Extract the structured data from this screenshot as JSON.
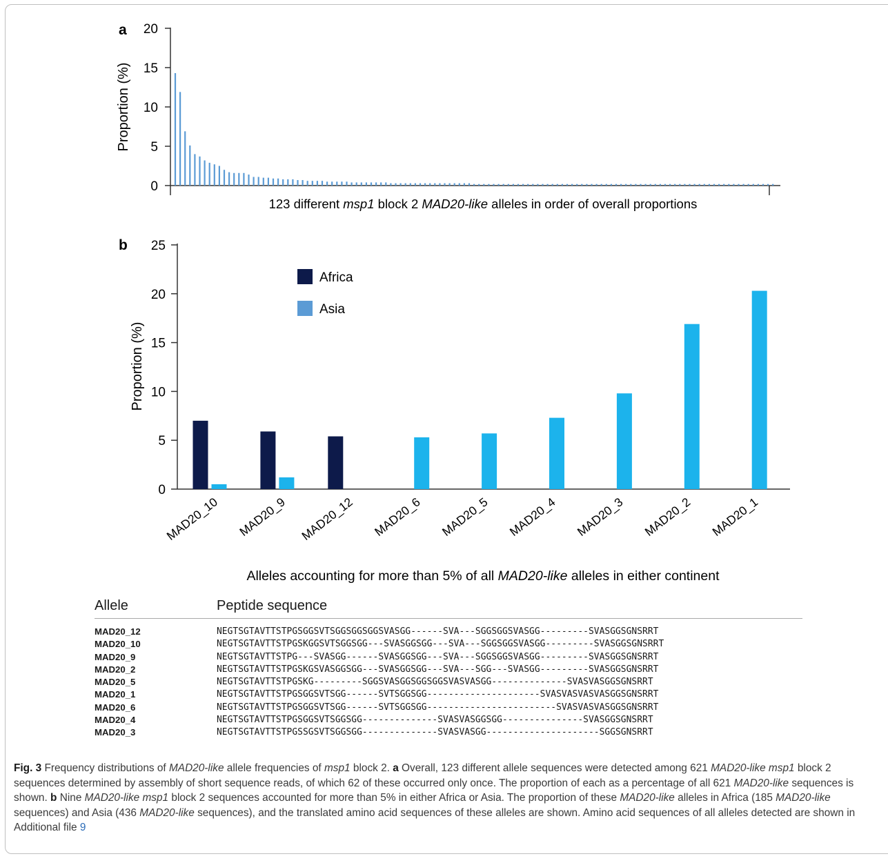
{
  "chart_data": [
    {
      "panel": "a",
      "type": "bar",
      "ylabel": "Proportion (%)",
      "xlabel_parts": [
        {
          "text": "123 different ",
          "italic": false
        },
        {
          "text": "msp1",
          "italic": true
        },
        {
          "text": " block 2 ",
          "italic": false
        },
        {
          "text": "MAD20-like",
          "italic": true
        },
        {
          "text": " alleles in order of overall proportions",
          "italic": false
        }
      ],
      "ylim": [
        0,
        20
      ],
      "yticks": [
        "0",
        "5",
        "10",
        "15",
        "20"
      ],
      "color": "#5b9bd5",
      "n_alleles": 123,
      "values": [
        14.3,
        11.9,
        6.9,
        5.1,
        4.0,
        3.7,
        3.2,
        2.9,
        2.7,
        2.5,
        2.0,
        1.7,
        1.6,
        1.6,
        1.6,
        1.4,
        1.1,
        1.1,
        1.0,
        1.0,
        0.9,
        0.9,
        0.8,
        0.8,
        0.8,
        0.7,
        0.7,
        0.6,
        0.6,
        0.6,
        0.6,
        0.5,
        0.5,
        0.5,
        0.5,
        0.5,
        0.4,
        0.4,
        0.4,
        0.4,
        0.4,
        0.4,
        0.4,
        0.4,
        0.3,
        0.3,
        0.3,
        0.3,
        0.3,
        0.3,
        0.3,
        0.3,
        0.3,
        0.3,
        0.3,
        0.3,
        0.3,
        0.3,
        0.3,
        0.3,
        0.3,
        0.2,
        0.2,
        0.2,
        0.2,
        0.2,
        0.2,
        0.2,
        0.2,
        0.2,
        0.2,
        0.2,
        0.2,
        0.2,
        0.2,
        0.2,
        0.2,
        0.2,
        0.2,
        0.2,
        0.2,
        0.2,
        0.2,
        0.2,
        0.2,
        0.2,
        0.2,
        0.2,
        0.2,
        0.2,
        0.2,
        0.2,
        0.2,
        0.2,
        0.2,
        0.2,
        0.2,
        0.2,
        0.2,
        0.2,
        0.2,
        0.2,
        0.2,
        0.2,
        0.2,
        0.2,
        0.2,
        0.2,
        0.2,
        0.2,
        0.2,
        0.2,
        0.2,
        0.2,
        0.2,
        0.2,
        0.2,
        0.2,
        0.2,
        0.2,
        0.2,
        0.2,
        0.2
      ]
    },
    {
      "panel": "b",
      "type": "bar",
      "ylabel": "Proportion (%)",
      "xlabel_parts": [
        {
          "text": "Alleles accounting for more than 5% of all ",
          "italic": false
        },
        {
          "text": "MAD20-like",
          "italic": true
        },
        {
          "text": " alleles in either continent",
          "italic": false
        }
      ],
      "ylim": [
        0,
        25
      ],
      "yticks": [
        "0",
        "5",
        "10",
        "15",
        "20",
        "25"
      ],
      "categories": [
        "MAD20_10",
        "MAD20_9",
        "MAD20_12",
        "MAD20_6",
        "MAD20_5",
        "MAD20_4",
        "MAD20_3",
        "MAD20_2",
        "MAD20_1"
      ],
      "series": [
        {
          "name": "Africa",
          "color": "#0d1a4a",
          "legend_color": "#0d1a4a",
          "values": [
            7.0,
            5.9,
            5.4,
            0,
            0,
            0,
            0,
            0,
            0
          ]
        },
        {
          "name": "Asia",
          "color": "#1cb3ec",
          "legend_color": "#5b9bd5",
          "values": [
            0.5,
            1.2,
            0,
            5.3,
            5.7,
            7.3,
            9.8,
            16.9,
            20.3
          ]
        }
      ],
      "legend": "upper-left"
    }
  ],
  "table": {
    "headers": [
      "Allele",
      "Peptide sequence"
    ],
    "rows": [
      {
        "allele": "MAD20_12",
        "sequence": "NEGTSGTAVTTSTPGSGGSVTSGGSGGSGGSVASGG------SVA---SGGSGGSVASGG---------SVASGGSGNSRRT"
      },
      {
        "allele": "MAD20_10",
        "sequence": "NEGTSGTAVTTSTPGSKGGSVTSGGSGG---SVASGGSGG---SVA---SGGSGGSVASGG---------SVASGGSGNSRRT"
      },
      {
        "allele": "MAD20_9",
        "sequence": "NEGTSGTAVTTSTPG---SVASGG------SVASGGSGG---SVA---SGGSGGSVASGG---------SVASGGSGNSRRT"
      },
      {
        "allele": "MAD20_2",
        "sequence": "NEGTSGTAVTTSTPGSKGSVASGGSGG---SVASGGSGG---SVA---SGG---SVASGG---------SVASGGSGNSRRT"
      },
      {
        "allele": "MAD20_5",
        "sequence": "NEGTSGTAVTTSTPGSKG---------SGGSVASGGSGGSGGSVASVASGG--------------SVASVASGGSGNSRRT"
      },
      {
        "allele": "MAD20_1",
        "sequence": "NEGTSGTAVTTSTPGSGGSVTSGG------SVTSGGSGG---------------------SVASVASVASVASGGSGNSRRT"
      },
      {
        "allele": "MAD20_6",
        "sequence": "NEGTSGTAVTTSTPGSGGSVTSGG------SVTSGGSGG------------------------SVASVASVASGGSGNSRRT"
      },
      {
        "allele": "MAD20_4",
        "sequence": "NEGTSGTAVTTSTPGSGGSVTSGGSGG--------------SVASVASGGSGG---------------SVASGGSGNSRRT"
      },
      {
        "allele": "MAD20_3",
        "sequence": "NEGTSGTAVTTSTPGSSGSVTSGGSGG--------------SVASVASGG---------------------SGGSGNSRRT"
      }
    ]
  },
  "caption": {
    "figure_label": "Fig. 3",
    "parts": [
      {
        "text": "Frequency distributions of ",
        "style": "normal"
      },
      {
        "text": "MAD20-like",
        "style": "italic"
      },
      {
        "text": " allele frequencies of ",
        "style": "normal"
      },
      {
        "text": "msp1",
        "style": "italic"
      },
      {
        "text": " block 2. ",
        "style": "normal"
      },
      {
        "text": "a",
        "style": "bold"
      },
      {
        "text": " Overall, 123 different allele sequences were detected among 621 ",
        "style": "normal"
      },
      {
        "text": "MAD20-like msp1",
        "style": "italic"
      },
      {
        "text": " block 2 sequences determined by assembly of short sequence reads, of which 62 of these occurred only once. The proportion of each as a percentage of all 621 ",
        "style": "normal"
      },
      {
        "text": "MAD20-like",
        "style": "italic"
      },
      {
        "text": " sequences is shown. ",
        "style": "normal"
      },
      {
        "text": "b",
        "style": "bold"
      },
      {
        "text": " Nine ",
        "style": "normal"
      },
      {
        "text": "MAD20-like msp1",
        "style": "italic"
      },
      {
        "text": " block 2 sequences accounted for more than 5% in either Africa or Asia. The proportion of these ",
        "style": "normal"
      },
      {
        "text": "MAD20-like",
        "style": "italic"
      },
      {
        "text": " alleles in Africa (185 ",
        "style": "normal"
      },
      {
        "text": "MAD20-like",
        "style": "italic"
      },
      {
        "text": " sequences) and Asia (436 ",
        "style": "normal"
      },
      {
        "text": "MAD20-like",
        "style": "italic"
      },
      {
        "text": " sequences), and the translated amino acid sequences of these alleles are shown. Amino acid sequences of all alleles detected are shown in Additional file ",
        "style": "normal"
      },
      {
        "text": "9",
        "style": "link"
      }
    ]
  }
}
